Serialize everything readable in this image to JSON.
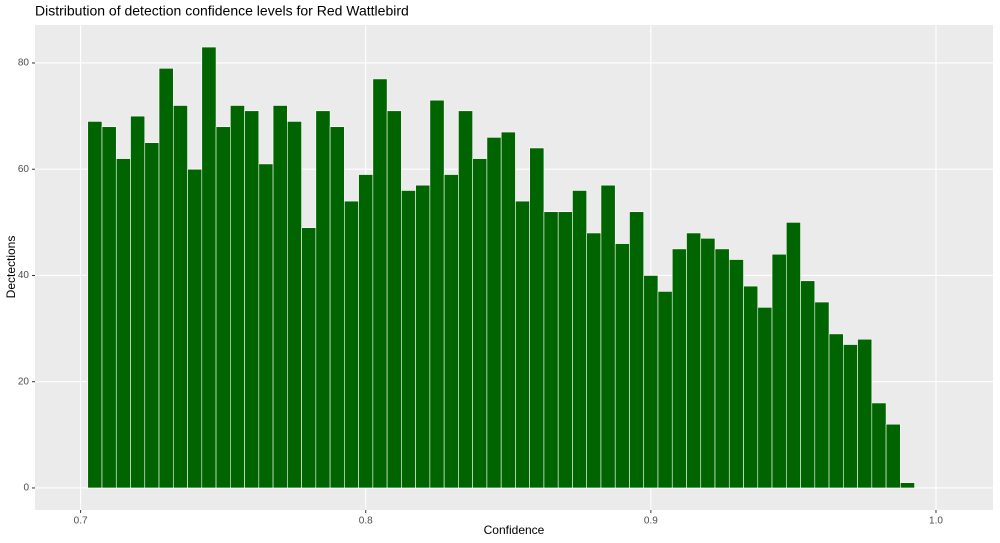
{
  "chart_data": {
    "type": "histogram",
    "title": "Distribution of detection confidence levels for Red Wattlebird",
    "x_label": "Confidence",
    "y_label": "Dectections",
    "bins": [
      0.7025,
      0.7075,
      0.7125,
      0.7175,
      0.7225,
      0.7275,
      0.7325,
      0.7375,
      0.7425,
      0.7475,
      0.7525,
      0.7575,
      0.7625,
      0.7675,
      0.7725,
      0.7775,
      0.7825,
      0.7875,
      0.7925,
      0.7975,
      0.8025,
      0.8075,
      0.8125,
      0.8175,
      0.8225,
      0.8275,
      0.8325,
      0.8375,
      0.8425,
      0.8475,
      0.8525,
      0.8575,
      0.8625,
      0.8675,
      0.8725,
      0.8775,
      0.8825,
      0.8875,
      0.8925,
      0.8975,
      0.9025,
      0.9075,
      0.9125,
      0.9175,
      0.9225,
      0.9275,
      0.9325,
      0.9375,
      0.9425,
      0.9475,
      0.9525,
      0.9575,
      0.9625,
      0.9675,
      0.9725,
      0.9775,
      0.9825,
      0.9875,
      0.9925
    ],
    "values": [
      69,
      68,
      62,
      70,
      65,
      79,
      72,
      60,
      83,
      68,
      72,
      71,
      61,
      72,
      69,
      49,
      71,
      68,
      54,
      59,
      77,
      71,
      56,
      57,
      73,
      59,
      71,
      62,
      66,
      67,
      54,
      64,
      52,
      52,
      56,
      48,
      57,
      46,
      52,
      40,
      37,
      45,
      48,
      47,
      45,
      43,
      38,
      34,
      44,
      50,
      39,
      35,
      29,
      27,
      28,
      16,
      12,
      1
    ],
    "color": "#006400",
    "xlim": [
      0.684,
      1.02
    ],
    "ylim": [
      -4.15,
      87.15
    ],
    "xticks": [
      0.7,
      0.8,
      0.9,
      {
        "value": 1.0,
        "label": "1.0"
      }
    ],
    "yticks": [
      0,
      20,
      40,
      60,
      80
    ],
    "grid": true
  }
}
